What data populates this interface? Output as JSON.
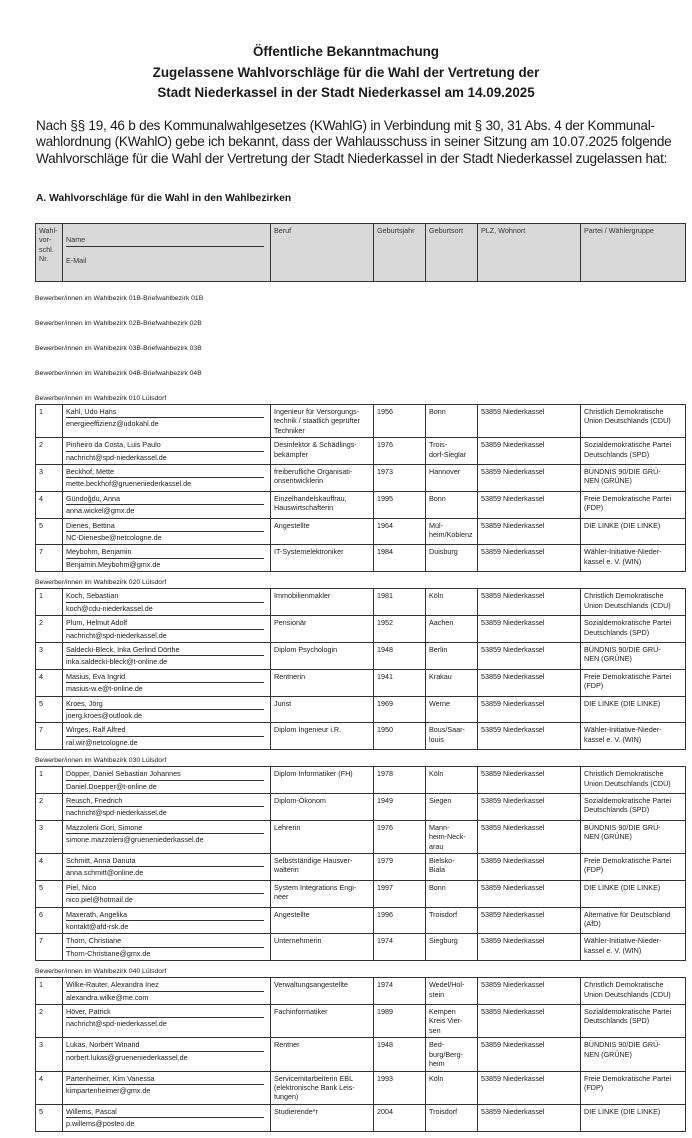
{
  "header": {
    "title_lines": [
      "Öffentliche Bekanntmachung",
      "Zugelassene Wahlvorschläge für die Wahl der Vertretung der",
      "Stadt Niederkassel in der Stadt Niederkassel am 14.09.2025"
    ],
    "intro_lines": [
      "Nach §§ 19, 46 b des Kommunalwahlgesetzes (KWahlG) in Verbindung mit § 30, 31 Abs. 4 der Kommunal-",
      "wahlordnung (KWahlO) gebe ich bekannt, dass der Wahlausschuss in seiner Sitzung am 10.07.2025 folgende",
      "Wahlvorschläge für die Wahl der Vertretung der Stadt Niederkassel in der Stadt Niederkassel zugelassen hat:"
    ],
    "section_heading": "A. Wahlvorschläge für die Wahl in den Wahlbezirken"
  },
  "columns": {
    "nr": "Wahl-\nvor-\nschl.\nNr.",
    "name": "Name",
    "email": "E-Mail",
    "beruf": "Beruf",
    "jahr": "Geburtsjahr",
    "ort": "Geburtsort",
    "plz": "PLZ, Wohnort",
    "partei": "Partei / Wählergruppe"
  },
  "empty_sections": [
    "Bewerber/innen im Wahlbezirk 01B-Briefwahlbezirk 01B",
    "Bewerber/innen im Wahlbezirk 02B-Briefwahbezirk 02B",
    "Bewerber/innen im Wahlbezirk 03B-Briefwahbezirk 03B",
    "Bewerber/innen im Wahlbezirk 04B-Briefwahbezirk 04B"
  ],
  "sections": [
    {
      "label": "Bewerber/innen im Wahlbezirk 010 Lülsdorf",
      "rows": [
        {
          "nr": "1",
          "name": "Kahl, Udo Hans",
          "email": "energieeffizienz@udokahl.de",
          "beruf": "Ingenieur für Versorgungs-\ntechnik / staatlich geprüfter\nTechniker",
          "jahr": "1956",
          "ort": "Bonn",
          "plz": "53859 Niederkassel",
          "partei": "Christlich Demokratische\nUnion Deutschlands (CDU)"
        },
        {
          "nr": "2",
          "name": "Pinheiro da Costa, Luis Paulo",
          "email": "nachricht@spd-niederkassel.de",
          "beruf": "Desinfektor & Schädlings-\nbekämpfer",
          "jahr": "1976",
          "ort": "Trois-\ndorf-Sieglar",
          "plz": "53859 Niederkassel",
          "partei": "Sozialdemokratische Partei\nDeutschlands (SPD)"
        },
        {
          "nr": "3",
          "name": "Beckhof, Mette",
          "email": "mette.beckhof@grueneniederkassel.de",
          "beruf": "freiberufliche Organisati-\nonsentwicklerin",
          "jahr": "1973",
          "ort": "Hannover",
          "plz": "53859 Niederkassel",
          "partei": "BÜNDNIS 90/DIE GRÜ-\nNEN (GRÜNE)"
        },
        {
          "nr": "4",
          "name": "Gündoğdu, Anna",
          "email": "anna.wickel@gmx.de",
          "beruf": "Einzelhandelskauffrau,\nHauswirtschafterin",
          "jahr": "1995",
          "ort": "Bonn",
          "plz": "53859 Niederkassel",
          "partei": "Freie Demokratische Partei\n(FDP)"
        },
        {
          "nr": "5",
          "name": "Dienes, Bettina",
          "email": "NC-Dienesbe@netcologne.de",
          "beruf": "Angestellte",
          "jahr": "1964",
          "ort": "Mül-\nheim/Koblenz",
          "plz": "53859 Niederkassel",
          "partei": "DIE LINKE (DIE LINKE)"
        },
        {
          "nr": "7",
          "name": "Meybohm, Benjamin",
          "email": "Benjamin.Meybohm@gmx.de",
          "beruf": "IT-Systemelektroniker",
          "jahr": "1984",
          "ort": "Duisburg",
          "plz": "53859 Niederkassel",
          "partei": "Wähler-Initiative-Nieder-\nkassel e. V. (WIN)"
        }
      ]
    },
    {
      "label": "Bewerber/innen im Wahlbezirk 020 Lülsdorf",
      "rows": [
        {
          "nr": "1",
          "name": "Koch, Sebastian",
          "email": "koch@cdu-niederkassel.de",
          "beruf": "Immobilienmakler",
          "jahr": "1981",
          "ort": "Köln",
          "plz": "53859 Niederkassel",
          "partei": "Christlich Demokratische\nUnion Deutschlands (CDU)"
        },
        {
          "nr": "2",
          "name": "Plum, Helmut Adolf",
          "email": "nachricht@spd-niederkassel.de",
          "beruf": "Pensionär",
          "jahr": "1952",
          "ort": "Aachen",
          "plz": "53859 Niederkassel",
          "partei": "Sozialdemokratische Partei\nDeutschlands (SPD)"
        },
        {
          "nr": "3",
          "name": "Saldecki-Bleck, Inka Gerlind Dörthe",
          "email": "inka.saldecki-bleck@t-online.de",
          "beruf": "Diplom Psychologin",
          "jahr": "1948",
          "ort": "Berlin",
          "plz": "53859 Niederkassel",
          "partei": "BÜNDNIS 90/DIE GRÜ-\nNEN (GRÜNE)"
        },
        {
          "nr": "4",
          "name": "Masius, Eva Ingrid",
          "email": "masius-w.e@t-online.de",
          "beruf": "Rentnerin",
          "jahr": "1941",
          "ort": "Krakau",
          "plz": "53859 Niederkassel",
          "partei": "Freie Demokratische Partei\n(FDP)"
        },
        {
          "nr": "5",
          "name": "Kroes, Jörg",
          "email": "joerg.kroes@outlook.de",
          "beruf": "Jurist",
          "jahr": "1969",
          "ort": "Werne",
          "plz": "53859 Niederkassel",
          "partei": "DIE LINKE (DIE LINKE)"
        },
        {
          "nr": "7",
          "name": "Wirges, Ralf Alfred",
          "email": "ral.wir@netcologne.de",
          "beruf": "Diplom Ingenieur i.R.",
          "jahr": "1950",
          "ort": "Bous/Saar-\nlouis",
          "plz": "53859 Niederkassel",
          "partei": "Wähler-Initiative-Nieder-\nkassel e. V. (WIN)"
        }
      ]
    },
    {
      "label": "Bewerber/innen im Wahlbezirk 030 Lülsdorf",
      "rows": [
        {
          "nr": "1",
          "name": "Döpper, Daniel Sebastian Johannes",
          "email": "Daniel.Doepper@t-online.de",
          "beruf": "Diplom Informatiker (FH)",
          "jahr": "1978",
          "ort": "Köln",
          "plz": "53859 Niederkassel",
          "partei": "Christlich Demokratische\nUnion Deutschlands (CDU)"
        },
        {
          "nr": "2",
          "name": "Reusch, Friedrich",
          "email": "nachricht@spd-niederkassel.de",
          "beruf": "Diplom-Ökonom",
          "jahr": "1949",
          "ort": "Siegen",
          "plz": "53859 Niederkassel",
          "partei": "Sozialdemokratische Partei\nDeutschlands (SPD)"
        },
        {
          "nr": "3",
          "name": "Mazzoleni Gori, Simone",
          "email": "simone.mazzoleni@grueneniederkassel.de",
          "beruf": "Lehrerin",
          "jahr": "1976",
          "ort": "Mann-\nheim-Neck-\narau",
          "plz": "53859 Niederkassel",
          "partei": "BÜNDNIS 90/DIE GRÜ-\nNEN (GRÜNE)"
        },
        {
          "nr": "4",
          "name": "Schmitt, Anna Danuta",
          "email": "anna.schmitt@online.de",
          "beruf": "Selbstständige Hausver-\nwalterin",
          "jahr": "1979",
          "ort": "Bielsko-\nBiala",
          "plz": "53859 Niederkassel",
          "partei": "Freie Demokratische Partei\n(FDP)"
        },
        {
          "nr": "5",
          "name": "Piel, Nico",
          "email": "nico.piel@hotmail.de",
          "beruf": "System Integrations Engi-\nneer",
          "jahr": "1997",
          "ort": "Bonn",
          "plz": "53859 Niederkassel",
          "partei": "DIE LINKE (DIE LINKE)"
        },
        {
          "nr": "6",
          "name": "Maxerath, Angelika",
          "email": "kontakt@afd-rsk.de",
          "beruf": "Angestellte",
          "jahr": "1996",
          "ort": "Troisdorf",
          "plz": "53859 Niederkassel",
          "partei": "Alternative für Deutschland\n(AfD)"
        },
        {
          "nr": "7",
          "name": "Thorn, Christiane",
          "email": "Thorn-Christiane@gmx.de",
          "beruf": "Unternehmerin",
          "jahr": "1974",
          "ort": "Siegburg",
          "plz": "53859 Niederkassel",
          "partei": "Wähler-Initiative-Nieder-\nkassel e. V. (WIN)"
        }
      ]
    },
    {
      "label": "Bewerber/innen im Wahlbezirk 040 Lülsdorf",
      "rows": [
        {
          "nr": "1",
          "name": "Wilke-Rauter, Alexandra Inez",
          "email": "alexandra.wilke@me.com",
          "beruf": "Verwaltungsangestellte",
          "jahr": "1974",
          "ort": "Wedel/Hol-\nstein",
          "plz": "53859 Niederkassel",
          "partei": "Christlich Demokratische\nUnion Deutschlands (CDU)"
        },
        {
          "nr": "2",
          "name": "Höver, Patrick",
          "email": "nachricht@spd-niederkassel.de",
          "beruf": "Fachinformatiker",
          "jahr": "1989",
          "ort": "Kempen\nKreis Vier-\nsen",
          "plz": "53859 Niederkassel",
          "partei": "Sozialdemokratische Partei\nDeutschlands (SPD)"
        },
        {
          "nr": "3",
          "name": "Lukas, Norbert Winand",
          "email": "norbert.lukas@grueneniederkassel.de",
          "beruf": "Rentner",
          "jahr": "1948",
          "ort": "Bed-\nburg/Berg-\nheim",
          "plz": "53859 Niederkassel",
          "partei": "BÜNDNIS 90/DIE GRÜ-\nNEN (GRÜNE)"
        },
        {
          "nr": "4",
          "name": "Partenheimer, Kim Vanessa",
          "email": "kimpartenheimer@gmx.de",
          "beruf": "Servicemitarbeiterin EBL\n(elektronische Bank Leis-\ntungen)",
          "jahr": "1993",
          "ort": "Köln",
          "plz": "53859 Niederkassel",
          "partei": "Freie Demokratische Partei\n(FDP)"
        },
        {
          "nr": "5",
          "name": "Willems, Pascal",
          "email": "p.willems@posteo.de",
          "beruf": "Studierende*r",
          "jahr": "2004",
          "ort": "Troisdorf",
          "plz": "53859 Niederkassel",
          "partei": "DIE LINKE (DIE LINKE)"
        }
      ]
    }
  ]
}
